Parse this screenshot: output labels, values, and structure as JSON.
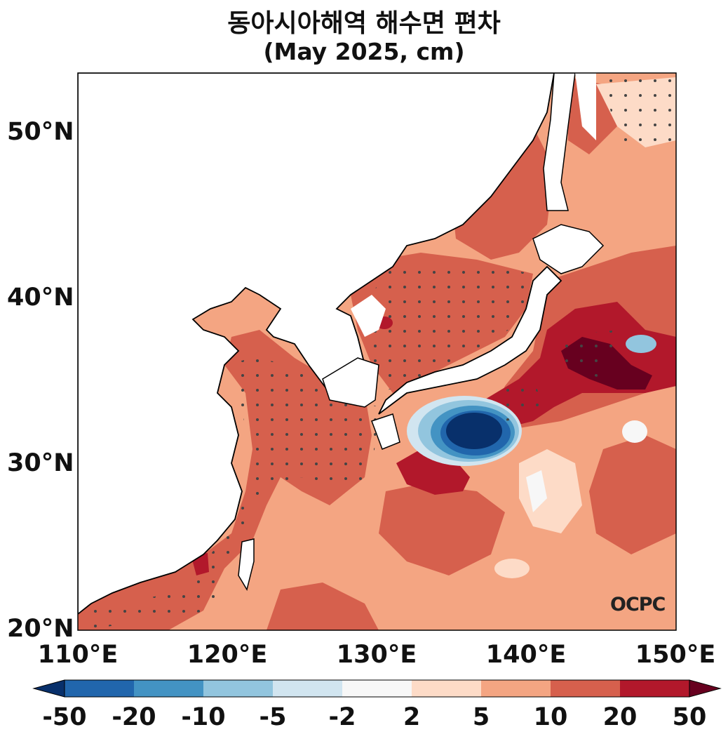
{
  "title": {
    "line1": "동아시아해역 해수면 편차",
    "line2": "(May 2025, cm)"
  },
  "axes": {
    "lat_ticks": [
      {
        "value": 50,
        "label": "50°N"
      },
      {
        "value": 40,
        "label": "40°N"
      },
      {
        "value": 30,
        "label": "30°N"
      },
      {
        "value": 20,
        "label": "20°N"
      }
    ],
    "lon_ticks": [
      {
        "value": 110,
        "label": "110°E"
      },
      {
        "value": 120,
        "label": "120°E"
      },
      {
        "value": 130,
        "label": "130°E"
      },
      {
        "value": 140,
        "label": "140°E"
      },
      {
        "value": 150,
        "label": "150°E"
      }
    ],
    "lon_range": [
      110,
      150
    ],
    "lat_range": [
      20,
      53.5
    ]
  },
  "colorbar": {
    "labels": [
      "-50",
      "-20",
      "-10",
      "-5",
      "-2",
      "2",
      "5",
      "10",
      "20",
      "50"
    ],
    "colors": [
      "#08306b",
      "#2166ac",
      "#4393c3",
      "#92c5de",
      "#d1e5f0",
      "#f7f7f7",
      "#fddbc7",
      "#f4a582",
      "#d6604d",
      "#b2182b",
      "#67001f"
    ],
    "extend": "both"
  },
  "logo": "OCPC",
  "colors": {
    "land": "#ffffff",
    "coast": "#000000",
    "stipple": "#444444"
  }
}
